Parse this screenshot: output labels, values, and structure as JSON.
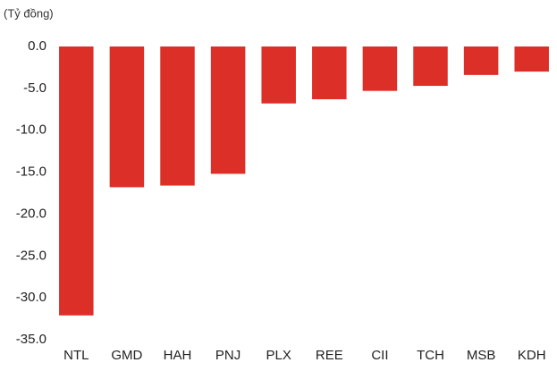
{
  "chart_data": {
    "type": "bar",
    "unit_label": "(Tỷ đồng)",
    "categories": [
      "NTL",
      "GMD",
      "HAH",
      "PNJ",
      "PLX",
      "REE",
      "CII",
      "TCH",
      "MSB",
      "KDH"
    ],
    "values": [
      -32.1,
      -16.8,
      -16.6,
      -15.2,
      -6.8,
      -6.3,
      -5.3,
      -4.7,
      -3.4,
      -3.0
    ],
    "color": "#dc2f27",
    "ylim": [
      0,
      -35
    ],
    "yticks": [
      {
        "value": 0,
        "label": "0.0"
      },
      {
        "value": -5,
        "label": "-5.0"
      },
      {
        "value": -10,
        "label": "-10.0"
      },
      {
        "value": -15,
        "label": "-15.0"
      },
      {
        "value": -20,
        "label": "-20.0"
      },
      {
        "value": -25,
        "label": "-25.0"
      },
      {
        "value": -30,
        "label": "-30.0"
      },
      {
        "value": -35,
        "label": "-35.0"
      }
    ],
    "grid": false
  }
}
